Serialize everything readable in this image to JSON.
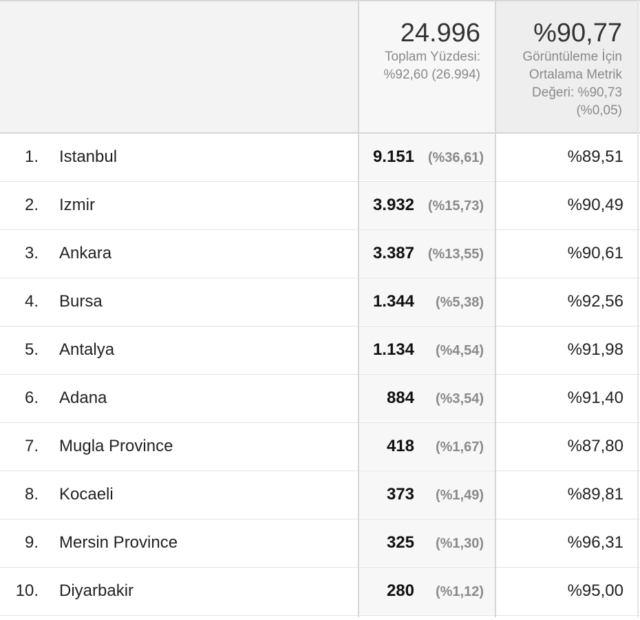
{
  "header": {
    "metric1": {
      "total": "24.996",
      "sub": "Toplam Yüzdesi:\n%92,60 (26.994)"
    },
    "metric2": {
      "total": "%90,77",
      "sub": "Görüntüleme İçin\nOrtalama Metrik\nDeğeri: %90,73\n(%0,05)"
    }
  },
  "rows": [
    {
      "rank": "1.",
      "city": "Istanbul",
      "value": "9.151",
      "pct": "(%36,61)",
      "ratio": "%89,51"
    },
    {
      "rank": "2.",
      "city": "Izmir",
      "value": "3.932",
      "pct": "(%15,73)",
      "ratio": "%90,49"
    },
    {
      "rank": "3.",
      "city": "Ankara",
      "value": "3.387",
      "pct": "(%13,55)",
      "ratio": "%90,61"
    },
    {
      "rank": "4.",
      "city": "Bursa",
      "value": "1.344",
      "pct": "(%5,38)",
      "ratio": "%92,56"
    },
    {
      "rank": "5.",
      "city": "Antalya",
      "value": "1.134",
      "pct": "(%4,54)",
      "ratio": "%91,98"
    },
    {
      "rank": "6.",
      "city": "Adana",
      "value": "884",
      "pct": "(%3,54)",
      "ratio": "%91,40"
    },
    {
      "rank": "7.",
      "city": "Mugla Province",
      "value": "418",
      "pct": "(%1,67)",
      "ratio": "%87,80"
    },
    {
      "rank": "8.",
      "city": "Kocaeli",
      "value": "373",
      "pct": "(%1,49)",
      "ratio": "%89,81"
    },
    {
      "rank": "9.",
      "city": "Mersin Province",
      "value": "325",
      "pct": "(%1,30)",
      "ratio": "%96,31"
    },
    {
      "rank": "10.",
      "city": "Diyarbakir",
      "value": "280",
      "pct": "(%1,12)",
      "ratio": "%95,00"
    }
  ]
}
